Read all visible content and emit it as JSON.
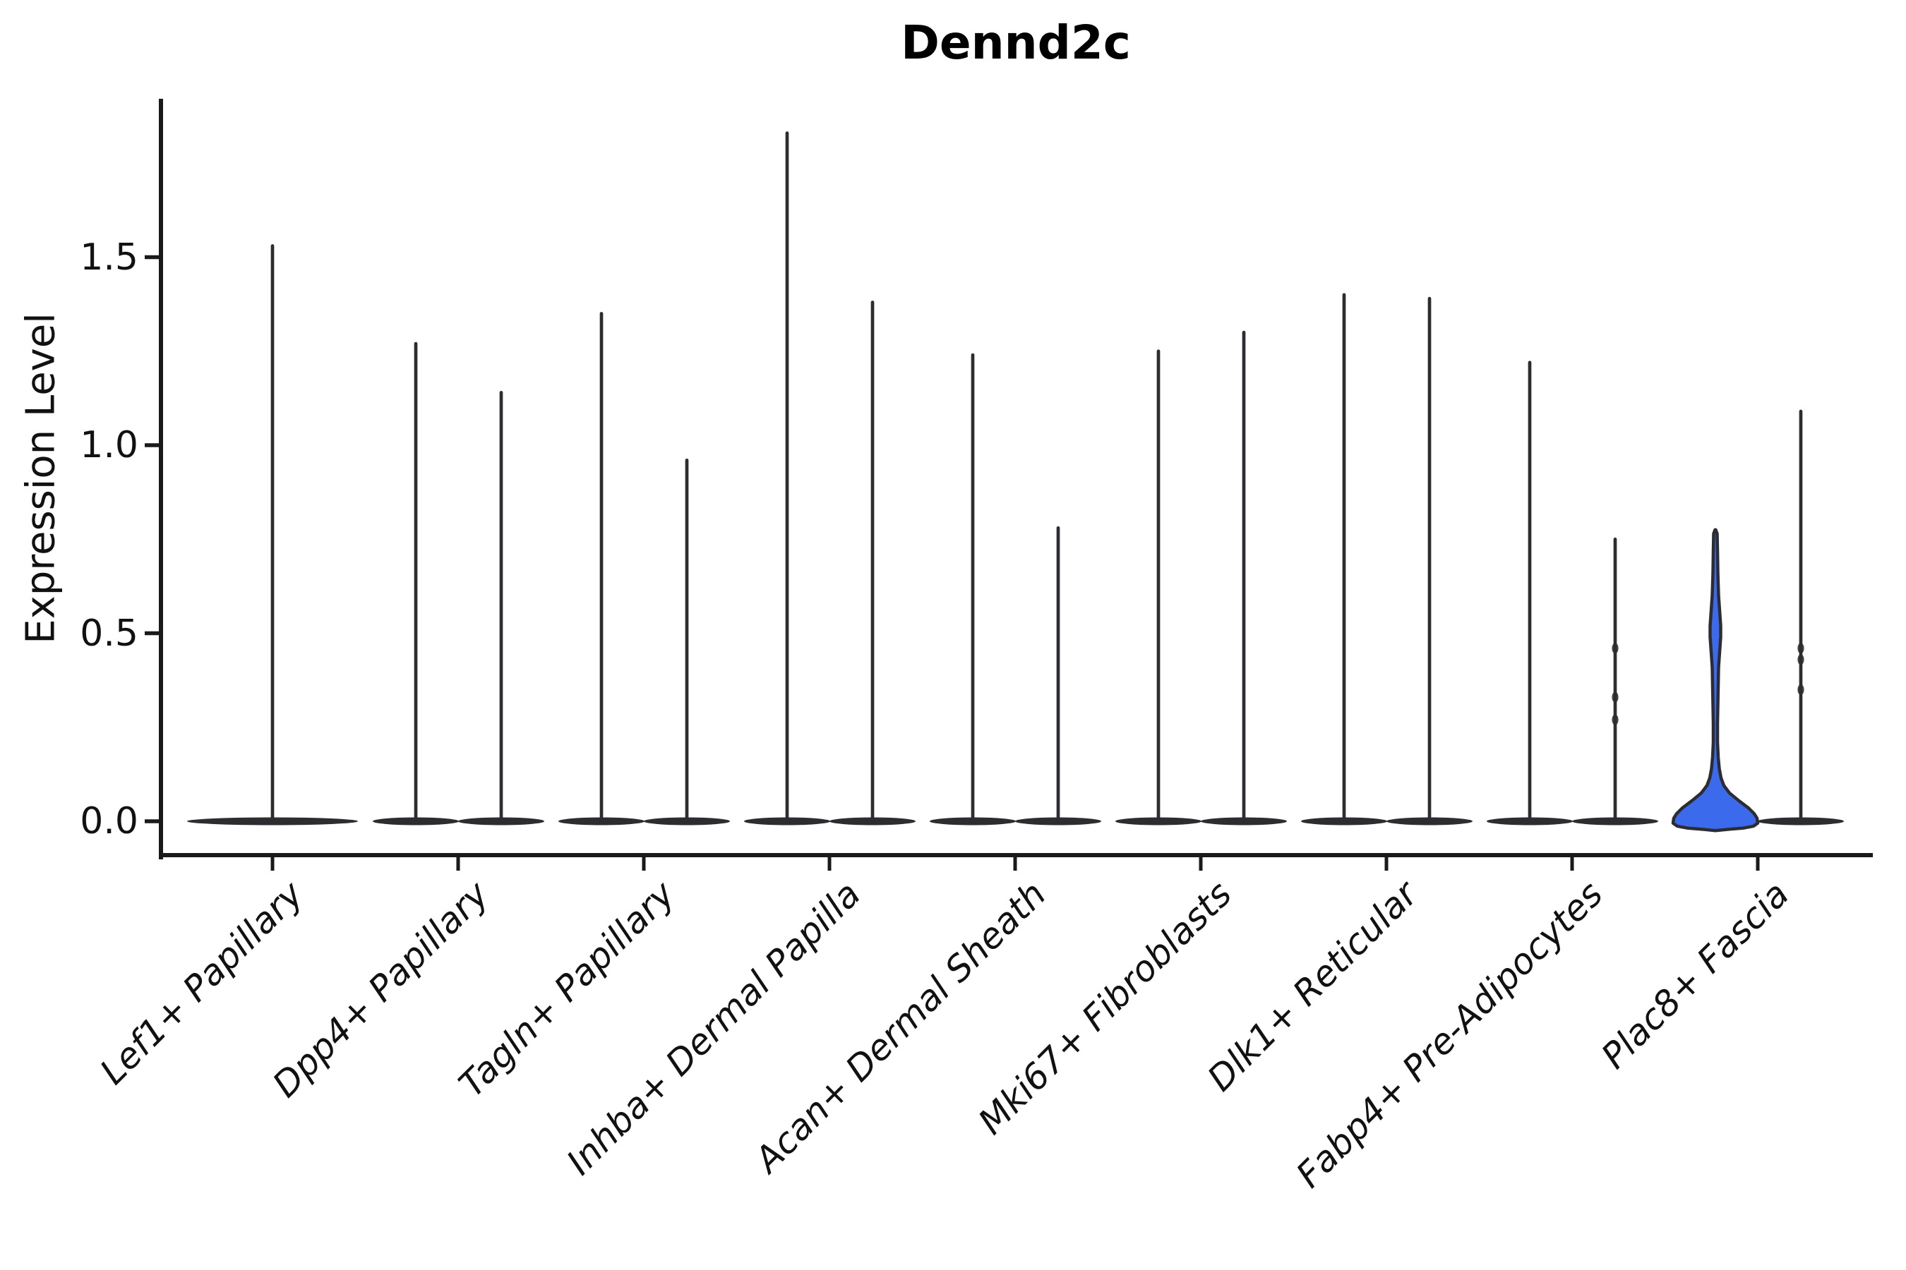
{
  "chart_data": {
    "type": "violin",
    "title": "Dennd2c",
    "ylabel": "Expression Level",
    "xlabel": "",
    "y_tick_labels": [
      "0.0",
      "0.5",
      "1.0",
      "1.5"
    ],
    "ylim": [
      -0.09,
      1.92
    ],
    "grid": false,
    "legend": null,
    "categories": [
      "Lef1+ Papillary",
      "Dpp4+ Papillary",
      "Tagln+ Papillary",
      "Inhba+ Dermal Papilla",
      "Acan+ Dermal Sheath",
      "Mki67+ Fibroblasts",
      "Dlk1+ Reticular",
      "Fabp4+ Pre-Adipocytes",
      "Plac8+ Fascia"
    ],
    "colors": {
      "outline": "#2d2d31",
      "highlight_fill": "#3b6aec",
      "axis": "#1a1a1a",
      "text": "#111111"
    },
    "series": [
      {
        "category": "Lef1+ Papillary",
        "violins": [
          {
            "side": "center",
            "max": 1.53,
            "style": "spike"
          }
        ]
      },
      {
        "category": "Dpp4+ Papillary",
        "violins": [
          {
            "side": "left",
            "max": 1.27,
            "style": "spike"
          },
          {
            "side": "right",
            "max": 1.14,
            "style": "spike"
          }
        ]
      },
      {
        "category": "Tagln+ Papillary",
        "violins": [
          {
            "side": "left",
            "max": 1.35,
            "style": "spike"
          },
          {
            "side": "right",
            "max": 0.96,
            "style": "spike"
          }
        ]
      },
      {
        "category": "Inhba+ Dermal Papilla",
        "violins": [
          {
            "side": "left",
            "max": 1.83,
            "style": "spike"
          },
          {
            "side": "right",
            "max": 1.38,
            "style": "spike"
          }
        ]
      },
      {
        "category": "Acan+ Dermal Sheath",
        "violins": [
          {
            "side": "left",
            "max": 1.24,
            "style": "spike"
          },
          {
            "side": "right",
            "max": 0.78,
            "style": "spike"
          }
        ]
      },
      {
        "category": "Mki67+ Fibroblasts",
        "violins": [
          {
            "side": "left",
            "max": 1.25,
            "style": "spike"
          },
          {
            "side": "right",
            "max": 1.3,
            "style": "spike"
          }
        ]
      },
      {
        "category": "Dlk1+ Reticular",
        "violins": [
          {
            "side": "left",
            "max": 1.4,
            "style": "spike"
          },
          {
            "side": "right",
            "max": 1.39,
            "style": "spike"
          }
        ]
      },
      {
        "category": "Fabp4+ Pre-Adipocytes",
        "violins": [
          {
            "side": "left",
            "max": 1.22,
            "style": "spike"
          },
          {
            "side": "right",
            "max": 0.75,
            "style": "spike",
            "bumps": [
              0.46,
              0.33,
              0.27
            ]
          }
        ]
      },
      {
        "category": "Plac8+ Fascia",
        "violins": [
          {
            "side": "left",
            "max": 0.76,
            "style": "filled",
            "profile": [
              [
                0.775,
                0.5
              ],
              [
                0.765,
                2.5
              ],
              [
                0.72,
                3
              ],
              [
                0.66,
                3.5
              ],
              [
                0.6,
                4.5
              ],
              [
                0.56,
                6
              ],
              [
                0.52,
                7.5
              ],
              [
                0.49,
                7.5
              ],
              [
                0.45,
                6
              ],
              [
                0.41,
                4.5
              ],
              [
                0.36,
                4
              ],
              [
                0.31,
                3.5
              ],
              [
                0.26,
                3
              ],
              [
                0.21,
                3
              ],
              [
                0.17,
                4
              ],
              [
                0.14,
                5.5
              ],
              [
                0.115,
                8
              ],
              [
                0.095,
                12
              ],
              [
                0.075,
                20
              ],
              [
                0.055,
                33
              ],
              [
                0.035,
                47
              ],
              [
                0.02,
                55
              ],
              [
                0.008,
                59
              ],
              [
                -0.005,
                60
              ],
              [
                -0.013,
                54
              ],
              [
                -0.018,
                40
              ],
              [
                -0.021,
                20
              ]
            ]
          },
          {
            "side": "right",
            "max": 1.09,
            "style": "spike",
            "bumps": [
              0.46,
              0.43,
              0.35
            ]
          }
        ]
      }
    ]
  }
}
